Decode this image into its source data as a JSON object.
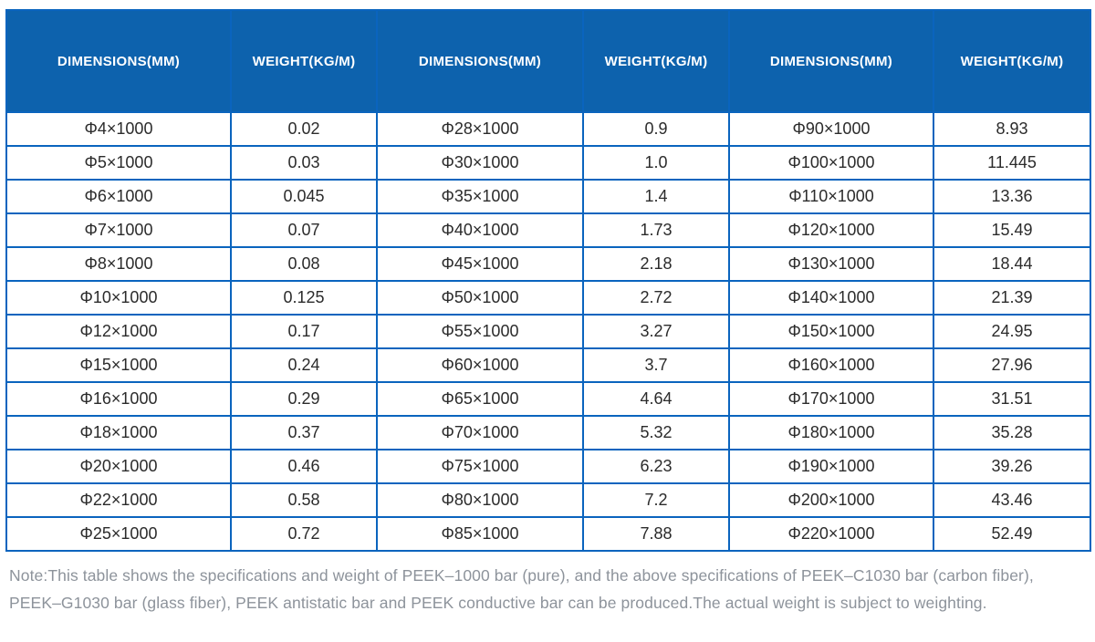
{
  "colors": {
    "header_bg": "#0d62ad",
    "table_border": "#0a64be",
    "note_text": "#8d939b"
  },
  "table": {
    "headers": [
      "DIMENSIONS(MM)",
      "WEIGHT(KG/M)",
      "DIMENSIONS(MM)",
      "WEIGHT(KG/M)",
      "DIMENSIONS(MM)",
      "WEIGHT(KG/M)"
    ],
    "rows": [
      [
        "Φ4×1000",
        "0.02",
        "Φ28×1000",
        "0.9",
        "Φ90×1000",
        "8.93"
      ],
      [
        "Φ5×1000",
        "0.03",
        "Φ30×1000",
        "1.0",
        "Φ100×1000",
        "11.445"
      ],
      [
        "Φ6×1000",
        "0.045",
        "Φ35×1000",
        "1.4",
        "Φ110×1000",
        "13.36"
      ],
      [
        "Φ7×1000",
        "0.07",
        "Φ40×1000",
        "1.73",
        "Φ120×1000",
        "15.49"
      ],
      [
        "Φ8×1000",
        "0.08",
        "Φ45×1000",
        "2.18",
        "Φ130×1000",
        "18.44"
      ],
      [
        "Φ10×1000",
        "0.125",
        "Φ50×1000",
        "2.72",
        "Φ140×1000",
        "21.39"
      ],
      [
        "Φ12×1000",
        "0.17",
        "Φ55×1000",
        "3.27",
        "Φ150×1000",
        "24.95"
      ],
      [
        "Φ15×1000",
        "0.24",
        "Φ60×1000",
        "3.7",
        "Φ160×1000",
        "27.96"
      ],
      [
        "Φ16×1000",
        "0.29",
        "Φ65×1000",
        "4.64",
        "Φ170×1000",
        "31.51"
      ],
      [
        "Φ18×1000",
        "0.37",
        "Φ70×1000",
        "5.32",
        "Φ180×1000",
        "35.28"
      ],
      [
        "Φ20×1000",
        "0.46",
        "Φ75×1000",
        "6.23",
        "Φ190×1000",
        "39.26"
      ],
      [
        "Φ22×1000",
        "0.58",
        "Φ80×1000",
        "7.2",
        "Φ200×1000",
        "43.46"
      ],
      [
        "Φ25×1000",
        "0.72",
        "Φ85×1000",
        "7.88",
        "Φ220×1000",
        "52.49"
      ]
    ]
  },
  "note": {
    "line1": "Note:This table shows the specifications and weight of PEEK–1000 bar (pure), and the above specifications of PEEK–C1030 bar (carbon fiber),",
    "line2": "PEEK–G1030 bar (glass fiber), PEEK antistatic bar and PEEK conductive bar can be produced.The actual weight is subject to weighting."
  }
}
